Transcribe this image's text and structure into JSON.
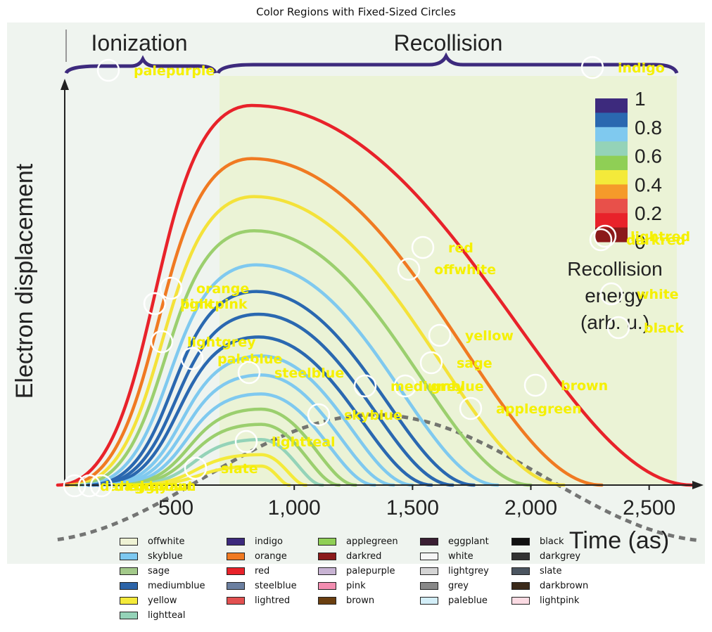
{
  "figure": {
    "title": "Color Regions with Fixed-Sized Circles"
  },
  "chart_data": {
    "type": "line",
    "title": "Color Regions with Fixed-Sized Circles",
    "panel_labels": [
      "Ionization",
      "Recollision"
    ],
    "xlabel": "Time (as)",
    "ylabel": "Electron displacement",
    "xlim": [
      0,
      2700
    ],
    "x_ticks": [
      500,
      1000,
      1500,
      2000,
      2500
    ],
    "x_tick_labels": [
      "500",
      "1,000",
      "1,500",
      "2,000",
      "2,500"
    ],
    "colorbar": {
      "title": "Recollision energy (arb. u.)",
      "title_lines": [
        "Recollision",
        "energy",
        "(arb. u.)"
      ],
      "ticks": [
        1,
        0.8,
        0.6,
        0.4,
        0.2,
        0
      ],
      "tick_labels": [
        "1",
        "0.8",
        "0.6",
        "0.4",
        "0.2",
        "0"
      ],
      "colors": [
        "#3d2a7d",
        "#2a68b0",
        "#7fc9ef",
        "#94d3b8",
        "#8fcf55",
        "#f4ea3a",
        "#f59a2a",
        "#e8504a",
        "#e8222a",
        "#8b1a1a"
      ]
    },
    "trajectories": [
      {
        "start": 0,
        "end": 2680,
        "peak_x": 820,
        "peak": 1.0,
        "color": "#e8222a"
      },
      {
        "start": 30,
        "end": 2300,
        "peak_x": 820,
        "peak": 0.86,
        "color": "#f07a22"
      },
      {
        "start": 55,
        "end": 2140,
        "peak_x": 830,
        "peak": 0.76,
        "color": "#f4e23a"
      },
      {
        "start": 80,
        "end": 2000,
        "peak_x": 830,
        "peak": 0.67,
        "color": "#9bcf6e"
      },
      {
        "start": 105,
        "end": 1860,
        "peak_x": 840,
        "peak": 0.58,
        "color": "#7fc9ef"
      },
      {
        "start": 130,
        "end": 1760,
        "peak_x": 840,
        "peak": 0.51,
        "color": "#2a68b0"
      },
      {
        "start": 150,
        "end": 1670,
        "peak_x": 850,
        "peak": 0.45,
        "color": "#2a68b0"
      },
      {
        "start": 170,
        "end": 1580,
        "peak_x": 850,
        "peak": 0.39,
        "color": "#2a68b0"
      },
      {
        "start": 190,
        "end": 1500,
        "peak_x": 860,
        "peak": 0.34,
        "color": "#7fc9ef"
      },
      {
        "start": 210,
        "end": 1420,
        "peak_x": 860,
        "peak": 0.29,
        "color": "#7fc9ef"
      },
      {
        "start": 230,
        "end": 1340,
        "peak_x": 860,
        "peak": 0.24,
        "color": "#7fc9ef"
      },
      {
        "start": 250,
        "end": 1260,
        "peak_x": 860,
        "peak": 0.2,
        "color": "#9bcf6e"
      },
      {
        "start": 270,
        "end": 1190,
        "peak_x": 860,
        "peak": 0.16,
        "color": "#9bcf6e"
      },
      {
        "start": 290,
        "end": 1120,
        "peak_x": 860,
        "peak": 0.12,
        "color": "#94d3b8"
      },
      {
        "start": 310,
        "end": 1050,
        "peak_x": 860,
        "peak": 0.08,
        "color": "#f4ea3a"
      },
      {
        "start": 330,
        "end": 980,
        "peak_x": 860,
        "peak": 0.05,
        "color": "#f4ea3a"
      }
    ],
    "field_curve": {
      "style": "dashed",
      "color": "#555555"
    },
    "markers": [
      {
        "label": "palepurple"
      },
      {
        "label": "indigo"
      },
      {
        "label": "lightred"
      },
      {
        "label": "darkred"
      },
      {
        "label": "red"
      },
      {
        "label": "offwhite"
      },
      {
        "label": "white"
      },
      {
        "label": "black"
      },
      {
        "label": "orange"
      },
      {
        "label": "pink"
      },
      {
        "label": "lightpink"
      },
      {
        "label": "yellow"
      },
      {
        "label": "lightgrey"
      },
      {
        "label": "paleblue"
      },
      {
        "label": "sage"
      },
      {
        "label": "steelblue"
      },
      {
        "label": "grey"
      },
      {
        "label": "mediumblue"
      },
      {
        "label": "brown"
      },
      {
        "label": "applegreen"
      },
      {
        "label": "skyblue"
      },
      {
        "label": "lightteal"
      },
      {
        "label": "slate"
      },
      {
        "label": "darkgrey"
      },
      {
        "label": "darkbrown"
      },
      {
        "label": "eggplant"
      }
    ],
    "legend": [
      [
        {
          "label": "offwhite",
          "color": "#eef2d4"
        },
        {
          "label": "skyblue",
          "color": "#7cc8f0"
        },
        {
          "label": "sage",
          "color": "#a3c98a"
        },
        {
          "label": "mediumblue",
          "color": "#2c64a8"
        },
        {
          "label": "yellow",
          "color": "#f4ea3a"
        },
        {
          "label": "lightteal",
          "color": "#94d3b8"
        }
      ],
      [
        {
          "label": "indigo",
          "color": "#3c2a7d"
        },
        {
          "label": "orange",
          "color": "#f07a22"
        },
        {
          "label": "red",
          "color": "#e8222a"
        },
        {
          "label": "steelblue",
          "color": "#6b7fa0"
        },
        {
          "label": "lightred",
          "color": "#e25050"
        }
      ],
      [
        {
          "label": "applegreen",
          "color": "#8fcf55"
        },
        {
          "label": "darkred",
          "color": "#8b1a1a"
        },
        {
          "label": "palepurple",
          "color": "#c8b3d3"
        },
        {
          "label": "pink",
          "color": "#f28db0"
        },
        {
          "label": "brown",
          "color": "#6b3f10"
        }
      ],
      [
        {
          "label": "eggplant",
          "color": "#3a1f33"
        },
        {
          "label": "white",
          "color": "#f6f6f6"
        },
        {
          "label": "lightgrey",
          "color": "#d4d4d4"
        },
        {
          "label": "grey",
          "color": "#888888"
        },
        {
          "label": "paleblue",
          "color": "#d3eef8"
        }
      ],
      [
        {
          "label": "black",
          "color": "#111111"
        },
        {
          "label": "darkgrey",
          "color": "#333333"
        },
        {
          "label": "slate",
          "color": "#4b5560"
        },
        {
          "label": "darkbrown",
          "color": "#3b2a1a"
        },
        {
          "label": "lightpink",
          "color": "#fbdbe3"
        }
      ]
    ]
  }
}
